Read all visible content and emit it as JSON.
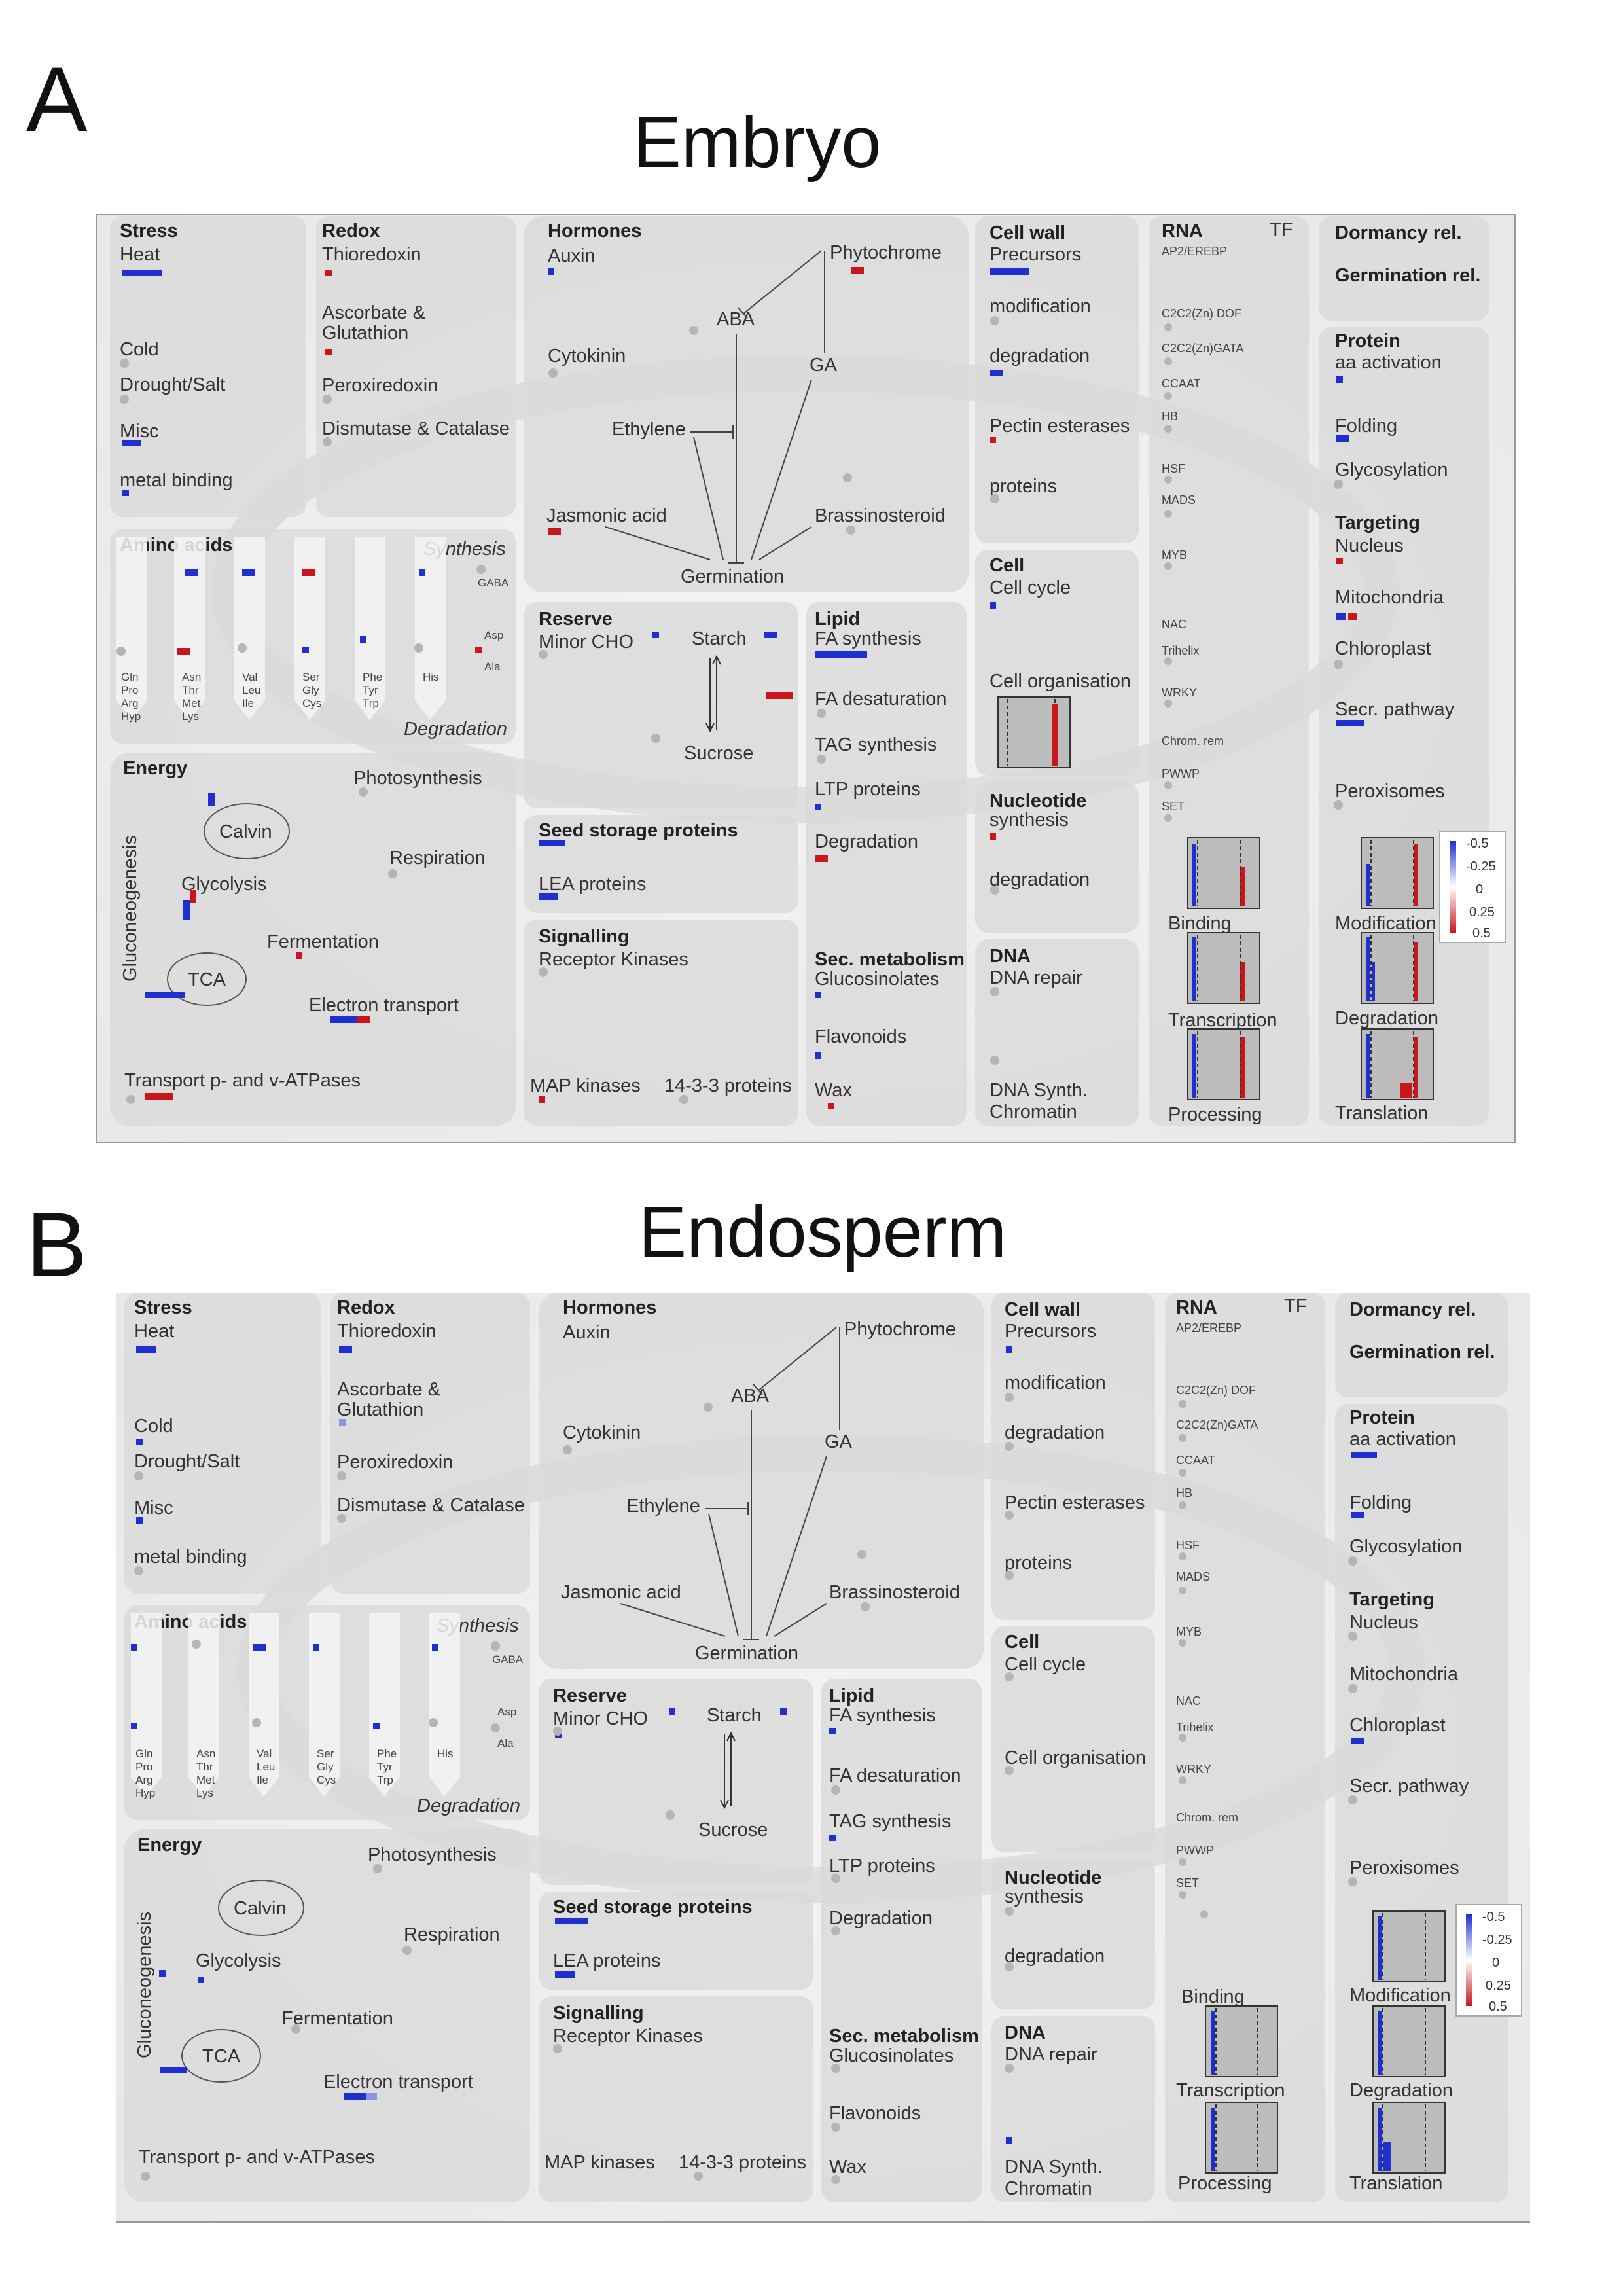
{
  "panels": [
    {
      "letter": "A",
      "title": "Embryo",
      "stress": {
        "header": "Stress",
        "items": [
          "Heat",
          "Cold",
          "Drought/Salt",
          "Misc",
          "metal binding"
        ]
      },
      "redox": {
        "header": "Redox",
        "items": [
          "Thioredoxin",
          "Ascorbate &",
          "Glutathion",
          "Peroxiredoxin",
          "Dismutase & Catalase"
        ]
      },
      "hormones": {
        "header": "Hormones",
        "auxin": "Auxin",
        "phytochrome": "Phytochrome",
        "aba": "ABA",
        "cytokinin": "Cytokinin",
        "ga": "GA",
        "ethylene": "Ethylene",
        "jasmonic": "Jasmonic acid",
        "brassino": "Brassinosteroid",
        "germination": "Germination"
      },
      "cellwall": {
        "header": "Cell wall",
        "items": [
          "Precursors",
          "modification",
          "degradation",
          "Pectin esterases",
          "proteins"
        ]
      },
      "rna": {
        "header": "RNA",
        "tf": "TF",
        "items": [
          "AP2/EREBP",
          "C2C2(Zn) DOF",
          "C2C2(Zn)GATA",
          "CCAAT",
          "HB",
          "HSF",
          "MADS",
          "MYB",
          "NAC",
          "Trihelix",
          "WRKY",
          "Chrom. rem",
          "PWWP",
          "SET"
        ],
        "charts": [
          "Binding",
          "Transcription",
          "Processing"
        ]
      },
      "dormancy": {
        "items": [
          "Dormancy rel.",
          "Germination rel."
        ]
      },
      "protein": {
        "header": "Protein",
        "items": [
          "aa activation",
          "Folding",
          "Glycosylation"
        ],
        "targeting_header": "Targeting",
        "targeting": [
          "Nucleus",
          "Mitochondria",
          "Chloroplast",
          "Secr. pathway",
          "Peroxisomes"
        ],
        "charts": [
          "Modification",
          "Degradation",
          "Translation"
        ]
      },
      "amino": {
        "header": "Amino acids",
        "synthesis": "Synthesis",
        "degradation": "Degradation",
        "gaba": "GABA",
        "asp": "Asp",
        "ala": "Ala",
        "columns": [
          [
            "Gln",
            "Pro",
            "Arg",
            "Hyp"
          ],
          [
            "Asn",
            "Thr",
            "Met",
            "Lys"
          ],
          [
            "Val",
            "Leu",
            "Ile"
          ],
          [
            "Ser",
            "Gly",
            "Cys"
          ],
          [
            "Phe",
            "Tyr",
            "Trp"
          ],
          [
            "His"
          ]
        ]
      },
      "reserve": {
        "header": "Reserve",
        "minor": "Minor CHO",
        "starch": "Starch",
        "sucrose": "Sucrose"
      },
      "lipid": {
        "header": "Lipid",
        "items": [
          "FA synthesis",
          "FA desaturation",
          "TAG synthesis",
          "LTP proteins",
          "Degradation"
        ]
      },
      "cell": {
        "header": "Cell",
        "items": [
          "Cell cycle",
          "Cell organisation"
        ]
      },
      "nucleotide": {
        "header": "Nucleotide",
        "items": [
          "synthesis",
          "degradation"
        ]
      },
      "energy": {
        "header": "Energy",
        "gluco": "Gluconeogenesis",
        "calvin": "Calvin",
        "photo": "Photosynthesis",
        "resp": "Respiration",
        "glyco": "Glycolysis",
        "ferm": "Fermentation",
        "tca": "TCA",
        "etrans": "Electron transport",
        "atp": "Transport p- and v-ATPases"
      },
      "seed": {
        "header": "Seed storage proteins",
        "lea": "LEA proteins"
      },
      "signalling": {
        "header": "Signalling",
        "items": [
          "Receptor Kinases",
          "MAP kinases",
          "14-3-3 proteins"
        ]
      },
      "secmet": {
        "header": "Sec. metabolism",
        "items": [
          "Glucosinolates",
          "Flavonoids",
          "Wax"
        ]
      },
      "dna": {
        "header": "DNA",
        "items": [
          "DNA repair",
          "DNA Synth.",
          "Chromatin"
        ]
      },
      "legend": [
        "-0.5",
        "-0.25",
        "0",
        "0.25",
        "0.5"
      ]
    },
    {
      "letter": "B",
      "title": "Endosperm",
      "stress": {
        "header": "Stress",
        "items": [
          "Heat",
          "Cold",
          "Drought/Salt",
          "Misc",
          "metal binding"
        ]
      },
      "redox": {
        "header": "Redox",
        "items": [
          "Thioredoxin",
          "Ascorbate &",
          "Glutathion",
          "Peroxiredoxin",
          "Dismutase & Catalase"
        ]
      },
      "hormones": {
        "header": "Hormones",
        "auxin": "Auxin",
        "phytochrome": "Phytochrome",
        "aba": "ABA",
        "cytokinin": "Cytokinin",
        "ga": "GA",
        "ethylene": "Ethylene",
        "jasmonic": "Jasmonic acid",
        "brassino": "Brassinosteroid",
        "germination": "Germination"
      },
      "cellwall": {
        "header": "Cell wall",
        "items": [
          "Precursors",
          "modification",
          "degradation",
          "Pectin esterases",
          "proteins"
        ]
      },
      "rna": {
        "header": "RNA",
        "tf": "TF",
        "items": [
          "AP2/EREBP",
          "C2C2(Zn) DOF",
          "C2C2(Zn)GATA",
          "CCAAT",
          "HB",
          "HSF",
          "MADS",
          "MYB",
          "NAC",
          "Trihelix",
          "WRKY",
          "Chrom. rem",
          "PWWP",
          "SET"
        ],
        "charts": [
          "Binding",
          "Transcription",
          "Processing"
        ]
      },
      "dormancy": {
        "items": [
          "Dormancy rel.",
          "Germination rel."
        ]
      },
      "protein": {
        "header": "Protein",
        "items": [
          "aa activation",
          "Folding",
          "Glycosylation"
        ],
        "targeting_header": "Targeting",
        "targeting": [
          "Nucleus",
          "Mitochondria",
          "Chloroplast",
          "Secr. pathway",
          "Peroxisomes"
        ],
        "charts": [
          "Modification",
          "Degradation",
          "Translation"
        ]
      },
      "amino": {
        "header": "Amino acids",
        "synthesis": "Synthesis",
        "degradation": "Degradation",
        "gaba": "GABA",
        "asp": "Asp",
        "ala": "Ala",
        "columns": [
          [
            "Gln",
            "Pro",
            "Arg",
            "Hyp"
          ],
          [
            "Asn",
            "Thr",
            "Met",
            "Lys"
          ],
          [
            "Val",
            "Leu",
            "Ile"
          ],
          [
            "Ser",
            "Gly",
            "Cys"
          ],
          [
            "Phe",
            "Tyr",
            "Trp"
          ],
          [
            "His"
          ]
        ]
      },
      "reserve": {
        "header": "Reserve",
        "minor": "Minor CHO",
        "starch": "Starch",
        "sucrose": "Sucrose"
      },
      "lipid": {
        "header": "Lipid",
        "items": [
          "FA synthesis",
          "FA desaturation",
          "TAG synthesis",
          "LTP proteins",
          "Degradation"
        ]
      },
      "cell": {
        "header": "Cell",
        "items": [
          "Cell cycle",
          "Cell organisation"
        ]
      },
      "nucleotide": {
        "header": "Nucleotide",
        "items": [
          "synthesis",
          "degradation"
        ]
      },
      "energy": {
        "header": "Energy",
        "gluco": "Gluconeogenesis",
        "calvin": "Calvin",
        "photo": "Photosynthesis",
        "resp": "Respiration",
        "glyco": "Glycolysis",
        "ferm": "Fermentation",
        "tca": "TCA",
        "etrans": "Electron transport",
        "atp": "Transport p- and v-ATPases"
      },
      "seed": {
        "header": "Seed storage proteins",
        "lea": "LEA proteins"
      },
      "signalling": {
        "header": "Signalling",
        "items": [
          "Receptor Kinases",
          "MAP kinases",
          "14-3-3 proteins"
        ]
      },
      "secmet": {
        "header": "Sec. metabolism",
        "items": [
          "Glucosinolates",
          "Flavonoids",
          "Wax"
        ]
      },
      "dna": {
        "header": "DNA",
        "items": [
          "DNA repair",
          "DNA Synth.",
          "Chromatin"
        ]
      },
      "legend": [
        "-0.5",
        "-0.25",
        "0",
        "0.25",
        "0.5"
      ]
    }
  ],
  "colors": {
    "blue": "#1f2fd0",
    "red": "#c8161c",
    "box": "#dadada",
    "boxstroke": "#c2c2c2",
    "dot": "#b5b5b5"
  }
}
